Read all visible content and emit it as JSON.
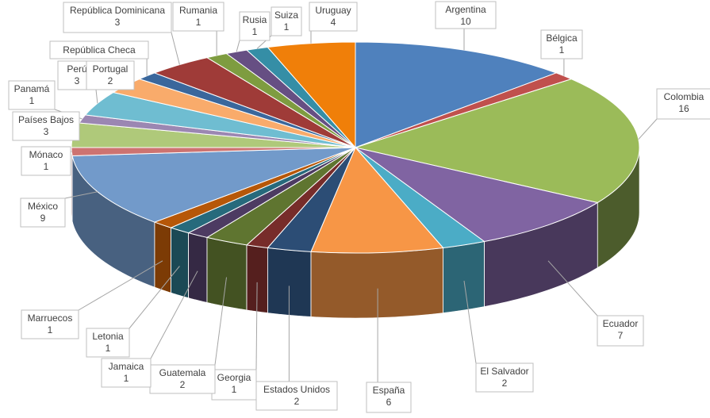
{
  "chart_data": {
    "type": "pie",
    "title": "",
    "style": "3d-pie",
    "label_layout": "outside-callouts",
    "series": [
      {
        "categories": [
          "Argentina",
          "Bélgica",
          "Colombia",
          "Ecuador",
          "El Salvador",
          "España",
          "Estados Unidos",
          "Georgia",
          "Guatemala",
          "Jamaica",
          "Letonia",
          "Marruecos",
          "México",
          "Mónaco",
          "Países Bajos",
          "Panamá",
          "Perú",
          "Portugal",
          "República Checa",
          "República Dominicana",
          "Rumania",
          "Rusia",
          "Suiza",
          "Uruguay"
        ],
        "values": [
          10,
          1,
          16,
          7,
          2,
          6,
          2,
          1,
          2,
          1,
          1,
          1,
          9,
          1,
          3,
          1,
          3,
          2,
          1,
          3,
          1,
          1,
          1,
          4
        ],
        "colors": [
          "#4F81BD",
          "#C0504D",
          "#9BBB59",
          "#8064A2",
          "#4BACC6",
          "#F79646",
          "#2C4D75",
          "#772C2A",
          "#5F7530",
          "#4D3B62",
          "#276A7C",
          "#B65708",
          "#729ACA",
          "#CD7371",
          "#AFC97A",
          "#9B87B2",
          "#6FBDD1",
          "#F9AB6B",
          "#3A679C",
          "#9F3B38",
          "#7E9C40",
          "#664F83",
          "#358EA6",
          "#F07F09"
        ]
      }
    ]
  }
}
